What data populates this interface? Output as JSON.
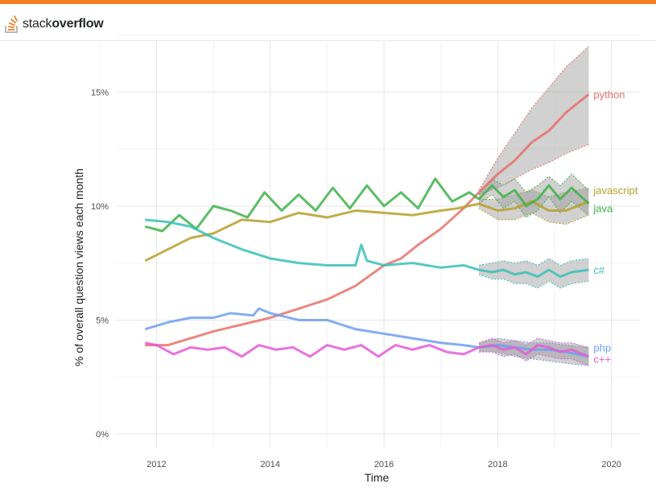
{
  "header": {
    "logo_light": "stack",
    "logo_bold": "overflow",
    "accent": "#f48024"
  },
  "chart_data": {
    "type": "line",
    "title": "",
    "xlabel": "Time",
    "ylabel": "% of overall question views each month",
    "xlim": [
      2011.3,
      2020.5
    ],
    "ylim": [
      -0.6,
      17.2
    ],
    "x_ticks": [
      2012,
      2014,
      2016,
      2018,
      2020
    ],
    "x_tick_labels": [
      "2012",
      "2014",
      "2016",
      "2018",
      "2020"
    ],
    "y_ticks": [
      0,
      5,
      10,
      15
    ],
    "y_tick_labels": [
      "0%",
      "5%",
      "10%",
      "15%"
    ],
    "grid": true,
    "forecast_start": 2017.67,
    "series": [
      {
        "name": "python",
        "color": "#e8716b",
        "x": [
          2011.8,
          2012.2,
          2012.6,
          2013.0,
          2013.5,
          2014.0,
          2014.5,
          2015.0,
          2015.5,
          2016.0,
          2016.3,
          2016.6,
          2017.0,
          2017.4,
          2017.67
        ],
        "values": [
          3.9,
          3.9,
          4.2,
          4.5,
          4.8,
          5.1,
          5.5,
          5.9,
          6.5,
          7.4,
          7.7,
          8.3,
          9.0,
          9.9,
          10.6
        ]
      },
      {
        "name": "javascript",
        "color": "#b79f29",
        "x": [
          2011.8,
          2012.2,
          2012.6,
          2013.0,
          2013.5,
          2014.0,
          2014.5,
          2015.0,
          2015.5,
          2016.0,
          2016.5,
          2017.0,
          2017.3,
          2017.67
        ],
        "values": [
          7.6,
          8.1,
          8.6,
          8.8,
          9.4,
          9.3,
          9.7,
          9.5,
          9.8,
          9.7,
          9.6,
          9.8,
          9.9,
          10.1
        ]
      },
      {
        "name": "java",
        "color": "#3fb24b",
        "x": [
          2011.8,
          2012.1,
          2012.4,
          2012.7,
          2013.0,
          2013.3,
          2013.6,
          2013.9,
          2014.2,
          2014.5,
          2014.8,
          2015.1,
          2015.4,
          2015.7,
          2016.0,
          2016.3,
          2016.6,
          2016.9,
          2017.2,
          2017.5,
          2017.67
        ],
        "values": [
          9.1,
          8.9,
          9.6,
          9.0,
          10.0,
          9.8,
          9.5,
          10.6,
          9.8,
          10.5,
          9.8,
          10.8,
          9.9,
          10.9,
          10.0,
          10.6,
          9.9,
          11.2,
          10.2,
          10.6,
          10.3
        ]
      },
      {
        "name": "c#",
        "color": "#38bfb9",
        "x": [
          2011.8,
          2012.2,
          2012.6,
          2013.0,
          2013.5,
          2014.0,
          2014.5,
          2015.0,
          2015.5,
          2015.6,
          2015.7,
          2016.0,
          2016.5,
          2017.0,
          2017.4,
          2017.67
        ],
        "values": [
          9.4,
          9.3,
          9.1,
          8.6,
          8.1,
          7.7,
          7.5,
          7.4,
          7.4,
          8.3,
          7.6,
          7.4,
          7.5,
          7.3,
          7.4,
          7.2
        ]
      },
      {
        "name": "php",
        "color": "#6f9ef1",
        "x": [
          2011.8,
          2012.2,
          2012.6,
          2013.0,
          2013.3,
          2013.7,
          2013.8,
          2014.0,
          2014.5,
          2015.0,
          2015.5,
          2016.0,
          2016.5,
          2017.0,
          2017.4,
          2017.67
        ],
        "values": [
          4.6,
          4.9,
          5.1,
          5.1,
          5.3,
          5.2,
          5.5,
          5.3,
          5.0,
          5.0,
          4.6,
          4.4,
          4.2,
          4.0,
          3.9,
          3.8
        ]
      },
      {
        "name": "c++",
        "color": "#e559d8",
        "x": [
          2011.8,
          2012.0,
          2012.3,
          2012.6,
          2012.9,
          2013.2,
          2013.5,
          2013.8,
          2014.1,
          2014.4,
          2014.7,
          2015.0,
          2015.3,
          2015.6,
          2015.9,
          2016.2,
          2016.5,
          2016.8,
          2017.1,
          2017.4,
          2017.67
        ],
        "values": [
          4.0,
          3.9,
          3.5,
          3.8,
          3.7,
          3.8,
          3.4,
          3.9,
          3.7,
          3.8,
          3.4,
          3.9,
          3.7,
          3.9,
          3.4,
          3.9,
          3.7,
          3.9,
          3.6,
          3.5,
          3.8
        ]
      }
    ],
    "forecasts": [
      {
        "name": "python",
        "label": "python",
        "color": "#e8716b",
        "x": [
          2017.67,
          2018.0,
          2018.3,
          2018.6,
          2018.9,
          2019.2,
          2019.6
        ],
        "values": [
          10.6,
          11.4,
          12.0,
          12.8,
          13.3,
          14.1,
          14.9
        ],
        "upper": [
          10.7,
          12.1,
          13.2,
          14.3,
          15.2,
          16.1,
          17.0
        ],
        "lower": [
          10.5,
          10.8,
          11.2,
          11.6,
          11.9,
          12.3,
          12.7
        ]
      },
      {
        "name": "javascript",
        "label": "javascript",
        "color": "#b79f29",
        "x": [
          2017.67,
          2018.0,
          2018.3,
          2018.6,
          2018.9,
          2019.2,
          2019.6
        ],
        "values": [
          10.1,
          9.8,
          9.9,
          10.2,
          9.8,
          9.8,
          10.2
        ],
        "upper": [
          10.3,
          10.3,
          10.5,
          10.7,
          10.4,
          10.6,
          10.8
        ],
        "lower": [
          9.9,
          9.4,
          9.4,
          9.7,
          9.3,
          9.2,
          9.6
        ]
      },
      {
        "name": "java",
        "label": "java",
        "color": "#3fb24b",
        "x": [
          2017.67,
          2017.9,
          2018.1,
          2018.3,
          2018.5,
          2018.7,
          2018.9,
          2019.1,
          2019.3,
          2019.6
        ],
        "values": [
          10.3,
          10.9,
          10.4,
          10.7,
          10.0,
          10.3,
          10.9,
          10.3,
          10.8,
          10.1
        ],
        "upper": [
          10.5,
          11.2,
          10.9,
          11.2,
          10.6,
          10.9,
          11.3,
          10.9,
          11.4,
          10.7
        ],
        "lower": [
          10.1,
          10.5,
          9.9,
          10.2,
          9.5,
          9.8,
          10.4,
          9.7,
          10.2,
          9.6
        ]
      },
      {
        "name": "c#",
        "label": "c#",
        "color": "#38bfb9",
        "x": [
          2017.67,
          2017.9,
          2018.1,
          2018.3,
          2018.5,
          2018.7,
          2018.9,
          2019.1,
          2019.3,
          2019.6
        ],
        "values": [
          7.2,
          7.1,
          7.2,
          7.0,
          7.1,
          6.9,
          7.2,
          6.9,
          7.1,
          7.2
        ],
        "upper": [
          7.4,
          7.5,
          7.6,
          7.5,
          7.6,
          7.4,
          7.7,
          7.4,
          7.6,
          7.7
        ],
        "lower": [
          7.0,
          6.8,
          6.8,
          6.6,
          6.6,
          6.4,
          6.7,
          6.4,
          6.6,
          6.7
        ]
      },
      {
        "name": "php",
        "label": "php",
        "color": "#6f9ef1",
        "x": [
          2017.67,
          2018.0,
          2018.3,
          2018.6,
          2018.9,
          2019.2,
          2019.6
        ],
        "values": [
          3.8,
          3.9,
          3.8,
          3.7,
          3.7,
          3.6,
          3.4
        ],
        "upper": [
          4.0,
          4.2,
          4.1,
          4.0,
          4.0,
          3.9,
          3.8
        ],
        "lower": [
          3.6,
          3.6,
          3.4,
          3.3,
          3.2,
          3.1,
          3.0
        ]
      },
      {
        "name": "c++",
        "label": "c++",
        "color": "#e559d8",
        "x": [
          2017.67,
          2017.9,
          2018.1,
          2018.3,
          2018.5,
          2018.7,
          2018.9,
          2019.1,
          2019.3,
          2019.6
        ],
        "values": [
          3.8,
          3.9,
          3.7,
          3.8,
          3.5,
          3.9,
          3.8,
          3.6,
          3.7,
          3.4
        ],
        "upper": [
          4.0,
          4.2,
          4.0,
          4.1,
          3.9,
          4.2,
          4.1,
          4.0,
          4.0,
          3.8
        ],
        "lower": [
          3.6,
          3.6,
          3.4,
          3.5,
          3.2,
          3.5,
          3.4,
          3.3,
          3.3,
          3.0
        ]
      }
    ],
    "label_values": {
      "python": 14.9,
      "javascript": 10.7,
      "java": 9.9,
      "c#": 7.2,
      "php": 3.8,
      "c++": 3.3
    }
  }
}
